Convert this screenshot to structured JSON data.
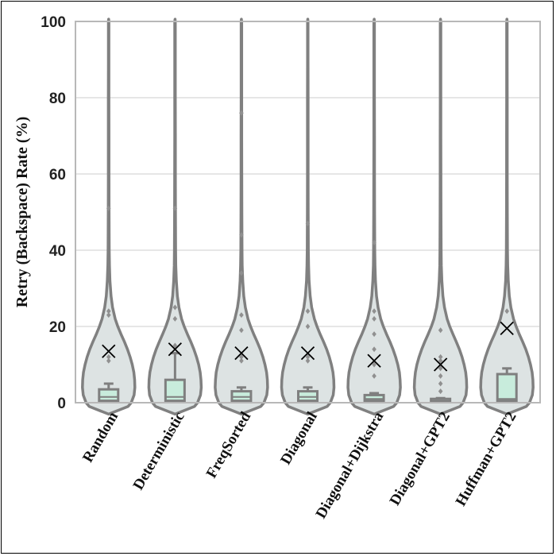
{
  "chart_data": {
    "type": "violin",
    "title": "",
    "xlabel": "",
    "ylabel": "Retry (Backspace) Rate (%)",
    "ylim": [
      0,
      100
    ],
    "yticks": [
      0,
      20,
      40,
      60,
      80,
      100
    ],
    "grid": "horizontal",
    "legend": "none",
    "marker_meaning": "mean",
    "colors": {
      "violin_fill": "#dde3e3",
      "violin_edge": "#808080",
      "box_fill": "#c8ecdc",
      "box_edge": "#7f7f7f",
      "mean_marker": "#000000",
      "outlier": "#909090",
      "grid": "#cccccc",
      "axes_edge": "#b8b8b8"
    },
    "categories": [
      "Random",
      "Deterministic",
      "FreqSorted",
      "Diagonal",
      "Diagonal+Dijkstra",
      "Diagonal+GPT2",
      "Huffman+GPT2"
    ],
    "series": [
      {
        "category": "Random",
        "q1": 0.5,
        "median": 1.5,
        "q3": 3.5,
        "whisker_low": 0,
        "whisker_high": 5,
        "mean": 13.5,
        "outliers": [
          11,
          12,
          23,
          24,
          51
        ]
      },
      {
        "category": "Deterministic",
        "q1": 0.5,
        "median": 1.5,
        "q3": 6,
        "whisker_low": 0,
        "whisker_high": 13,
        "mean": 14,
        "outliers": [
          15,
          22,
          25,
          51
        ]
      },
      {
        "category": "FreqSorted",
        "q1": 0.5,
        "median": 1.5,
        "q3": 3,
        "whisker_low": 0,
        "whisker_high": 4,
        "mean": 13,
        "outliers": [
          11,
          12,
          19,
          23,
          34,
          44,
          76
        ]
      },
      {
        "category": "Diagonal",
        "q1": 0.5,
        "median": 1.5,
        "q3": 3,
        "whisker_low": 0,
        "whisker_high": 4,
        "mean": 13,
        "outliers": [
          11,
          12,
          20,
          24,
          47
        ]
      },
      {
        "category": "Diagonal+Dijkstra",
        "q1": 0.5,
        "median": 1,
        "q3": 2,
        "whisker_low": 0,
        "whisker_high": 2.5,
        "mean": 11,
        "outliers": [
          7,
          10,
          14,
          18,
          22,
          24,
          42
        ]
      },
      {
        "category": "Diagonal+GPT2",
        "q1": 0.3,
        "median": 0.5,
        "q3": 1,
        "whisker_low": 0,
        "whisker_high": 1.2,
        "mean": 10,
        "outliers": [
          3,
          5,
          7,
          9,
          11,
          12,
          19
        ]
      },
      {
        "category": "Huffman+GPT2",
        "q1": 0.5,
        "median": 1,
        "q3": 7.5,
        "whisker_low": 0,
        "whisker_high": 9,
        "mean": 19.5,
        "outliers": [
          24
        ]
      }
    ]
  }
}
